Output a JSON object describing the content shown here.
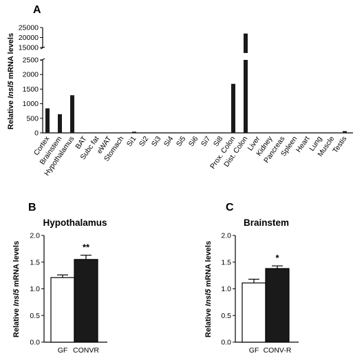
{
  "panels": {
    "a": {
      "letter": "A"
    },
    "b": {
      "letter": "B"
    },
    "c": {
      "letter": "C"
    }
  },
  "chart_data": [
    {
      "type": "bar",
      "panel": "A",
      "ylabel_prefix": "Relative ",
      "ylabel_italic": "Insl5",
      "ylabel_suffix": " mRNA levels",
      "y_axis": "broken",
      "lower_ylim": [
        0,
        2500
      ],
      "upper_ylim": [
        15000,
        25000
      ],
      "lower_ticks": [
        "0",
        "500",
        "1000",
        "1500",
        "2000",
        "2500"
      ],
      "upper_ticks": [
        "15000",
        "20000",
        "25000"
      ],
      "bar_color": "#1a1a1a",
      "categories": [
        "Cortex",
        "Brainstem",
        "Hypothalamus",
        "BAT",
        "Subc fat",
        "eWAT",
        "Stomach",
        "Si1",
        "Si2",
        "Si3",
        "Si4",
        "Si5",
        "Si6",
        "Si7",
        "Si8",
        "Prox. Colon",
        "Dist. Colon",
        "Liver",
        "Kidney",
        "Pancreas",
        "Spleen",
        "Heart",
        "Lung",
        "Muscle",
        "Testis"
      ],
      "values": [
        840,
        640,
        1290,
        0,
        0,
        0,
        0,
        40,
        0,
        0,
        0,
        0,
        0,
        0,
        0,
        1680,
        22000,
        0,
        0,
        0,
        0,
        0,
        0,
        0,
        60
      ]
    },
    {
      "type": "bar",
      "panel": "B",
      "title": "Hypothalamus",
      "ylabel_prefix": "Relative ",
      "ylabel_italic": "Insl5",
      "ylabel_suffix": " mRNA levels",
      "ylim": [
        0,
        2.0
      ],
      "ticks": [
        "0.0",
        "0.5",
        "1.0",
        "1.5",
        "2.0"
      ],
      "categories": [
        "GF",
        "CONVR"
      ],
      "values": [
        1.21,
        1.55
      ],
      "errors": [
        0.05,
        0.08
      ],
      "fills": [
        "#ffffff",
        "#1a1a1a"
      ],
      "significance": "**"
    },
    {
      "type": "bar",
      "panel": "C",
      "title": "Brainstem",
      "ylabel_prefix": "Relative ",
      "ylabel_italic": "Insl5",
      "ylabel_suffix": " mRNA levels",
      "ylim": [
        0,
        2.0
      ],
      "ticks": [
        "0.0",
        "0.5",
        "1.0",
        "1.5",
        "2.0"
      ],
      "categories": [
        "GF",
        "CONV-R"
      ],
      "values": [
        1.11,
        1.38
      ],
      "errors": [
        0.07,
        0.05
      ],
      "fills": [
        "#ffffff",
        "#1a1a1a"
      ],
      "significance": "*"
    }
  ]
}
